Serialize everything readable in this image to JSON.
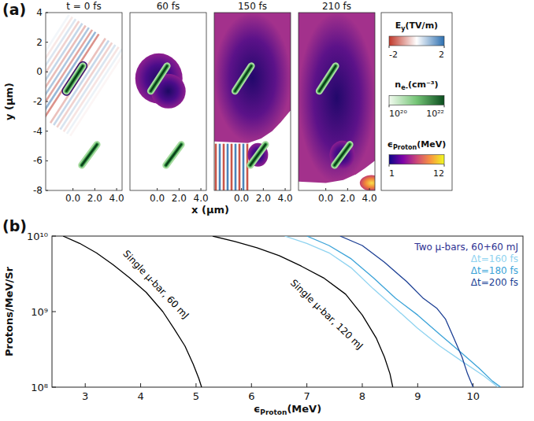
{
  "chart_data": [
    {
      "type": "heatmap",
      "panel_label": "(a)",
      "panels": [
        {
          "title": "t = 0 fs"
        },
        {
          "title": "60 fs"
        },
        {
          "title": "150 fs"
        },
        {
          "title": "210 fs"
        }
      ],
      "x_label": "x (µm)",
      "y_label": "y (µm)",
      "xlim": [
        -2.5,
        4.5
      ],
      "xticks": [
        {
          "value": 0,
          "label": "0.0"
        },
        {
          "value": 2,
          "label": "2.0"
        },
        {
          "value": 4,
          "label": "4.0"
        }
      ],
      "ylim": [
        -8,
        4
      ],
      "yticks": [
        -8,
        -6,
        -4,
        -2,
        0,
        2,
        4
      ],
      "targets": [
        {
          "x": [
            -0.6,
            0.9
          ],
          "y": [
            -1.3,
            0.4
          ]
        },
        {
          "x": [
            0.8,
            2.2
          ],
          "y": [
            -6.3,
            -4.9
          ]
        }
      ],
      "colorbars": [
        {
          "label": {
            "symbol": "E",
            "subscript": "y",
            "unit": "(TV/m)"
          },
          "range": [
            -2,
            2
          ],
          "ticks": [
            -2,
            2
          ],
          "colors": [
            "#c0392b",
            "#ffffff",
            "#2c6fb0"
          ]
        },
        {
          "label": {
            "symbol": "n",
            "subscript": "e-",
            "unit": "(cm⁻³)"
          },
          "range": [
            1e+20,
            1e+22
          ],
          "ticks": [
            {
              "value": 1e+20,
              "label": "10²⁰"
            },
            {
              "value": 1e+22,
              "label": "10²²"
            }
          ],
          "log": true,
          "colors": [
            "#f2fbef",
            "#74c476",
            "#0b4d1e"
          ]
        },
        {
          "label": {
            "symbol": "ϵ",
            "subscript": "Proton",
            "unit": "(MeV)"
          },
          "range": [
            1,
            12
          ],
          "ticks": [
            1,
            12
          ],
          "colors": [
            "#0d0887",
            "#7e03a8",
            "#cc4778",
            "#f89540",
            "#f0f921"
          ]
        }
      ]
    },
    {
      "type": "line",
      "panel_label": "(b)",
      "x_label": {
        "symbol": "ϵ",
        "subscript": "Proton",
        "unit": "(MeV)"
      },
      "y_label": "Protons/MeV/Sr",
      "log": "y",
      "xlim": [
        2.4,
        10.9
      ],
      "xticks": [
        3,
        4,
        5,
        6,
        7,
        8,
        9,
        10
      ],
      "ylim": [
        100000000.0,
        10000000000.0
      ],
      "yticks": [
        {
          "value": 100000000.0,
          "label": "10⁸"
        },
        {
          "value": 1000000000.0,
          "label": "10⁹"
        },
        {
          "value": 10000000000.0,
          "label": "10¹⁰"
        }
      ],
      "legend": "top-right",
      "legend_title": "Two µ-bars, 60+60 mJ",
      "series": [
        {
          "name": "Single µ-bar, 60 mJ",
          "color": "#000000",
          "x": [
            2.6,
            2.9,
            3.2,
            3.5,
            3.8,
            4.1,
            4.4,
            4.6,
            4.8,
            4.95,
            5.05,
            5.1
          ],
          "values": [
            10000000000.0,
            8000000000.0,
            6000000000.0,
            4200000000.0,
            2800000000.0,
            1800000000.0,
            1000000000.0,
            600000000.0,
            350000000.0,
            200000000.0,
            130000000.0,
            100000000.0
          ]
        },
        {
          "name": "Single µ-bar, 120 mJ",
          "color": "#000000",
          "x": [
            5.3,
            5.7,
            6.1,
            6.5,
            6.9,
            7.3,
            7.7,
            8.0,
            8.25,
            8.4,
            8.5,
            8.55
          ],
          "values": [
            10000000000.0,
            8500000000.0,
            7000000000.0,
            5500000000.0,
            4000000000.0,
            2800000000.0,
            1700000000.0,
            900000000.0,
            450000000.0,
            250000000.0,
            150000000.0,
            100000000.0
          ]
        },
        {
          "name": "Δt=160 fs",
          "color": "#8fd3f0",
          "x": [
            6.6,
            7.0,
            7.4,
            7.8,
            8.2,
            8.6,
            9.0,
            9.4,
            9.8,
            10.2,
            10.45
          ],
          "values": [
            10000000000.0,
            8000000000.0,
            6000000000.0,
            3800000000.0,
            2000000000.0,
            1100000000.0,
            600000000.0,
            350000000.0,
            220000000.0,
            140000000.0,
            100000000.0
          ]
        },
        {
          "name": "Δt=180 fs",
          "color": "#3ba3d8",
          "x": [
            7.0,
            7.4,
            7.8,
            8.2,
            8.6,
            9.0,
            9.4,
            9.8,
            10.1,
            10.35,
            10.5
          ],
          "values": [
            10000000000.0,
            7500000000.0,
            5000000000.0,
            2800000000.0,
            1500000000.0,
            900000000.0,
            500000000.0,
            280000000.0,
            180000000.0,
            120000000.0,
            100000000.0
          ]
        },
        {
          "name": "Δt=200 fs",
          "color": "#1c3f94",
          "x": [
            7.6,
            8.0,
            8.4,
            8.8,
            9.1,
            9.35,
            9.5,
            9.65,
            9.8,
            9.9,
            10.0
          ],
          "values": [
            10000000000.0,
            7500000000.0,
            4500000000.0,
            2500000000.0,
            1500000000.0,
            1100000000.0,
            800000000.0,
            450000000.0,
            250000000.0,
            150000000.0,
            100000000.0
          ]
        }
      ]
    }
  ]
}
